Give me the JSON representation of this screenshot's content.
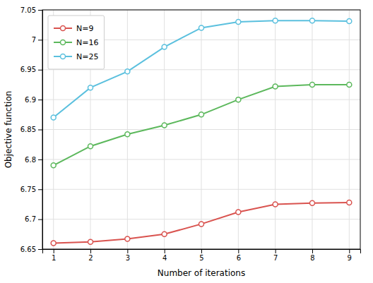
{
  "chart_data": {
    "type": "line",
    "x_label": "Number of iterations",
    "y_label": "Objective function",
    "x": [
      1,
      2,
      3,
      4,
      5,
      6,
      7,
      8,
      9
    ],
    "series": [
      {
        "name": "N=9",
        "color": "#d9534f",
        "values": [
          6.66,
          6.662,
          6.667,
          6.675,
          6.692,
          6.712,
          6.725,
          6.727,
          6.728
        ]
      },
      {
        "name": "N=16",
        "color": "#5cb85c",
        "values": [
          6.79,
          6.822,
          6.842,
          6.857,
          6.875,
          6.9,
          6.922,
          6.925,
          6.925
        ]
      },
      {
        "name": "N=25",
        "color": "#5bc0de",
        "values": [
          6.87,
          6.92,
          6.947,
          6.988,
          7.02,
          7.03,
          7.032,
          7.032,
          7.031
        ]
      }
    ],
    "xlim": [
      0.7,
      9.3
    ],
    "ylim": [
      6.65,
      7.05
    ],
    "xticks": [
      1,
      2,
      3,
      4,
      5,
      6,
      7,
      8,
      9
    ],
    "yticks": [
      6.65,
      6.7,
      6.75,
      6.8,
      6.85,
      6.9,
      6.95,
      7,
      7.05
    ],
    "marker": "circle",
    "grid": true,
    "legend": "upper left"
  }
}
